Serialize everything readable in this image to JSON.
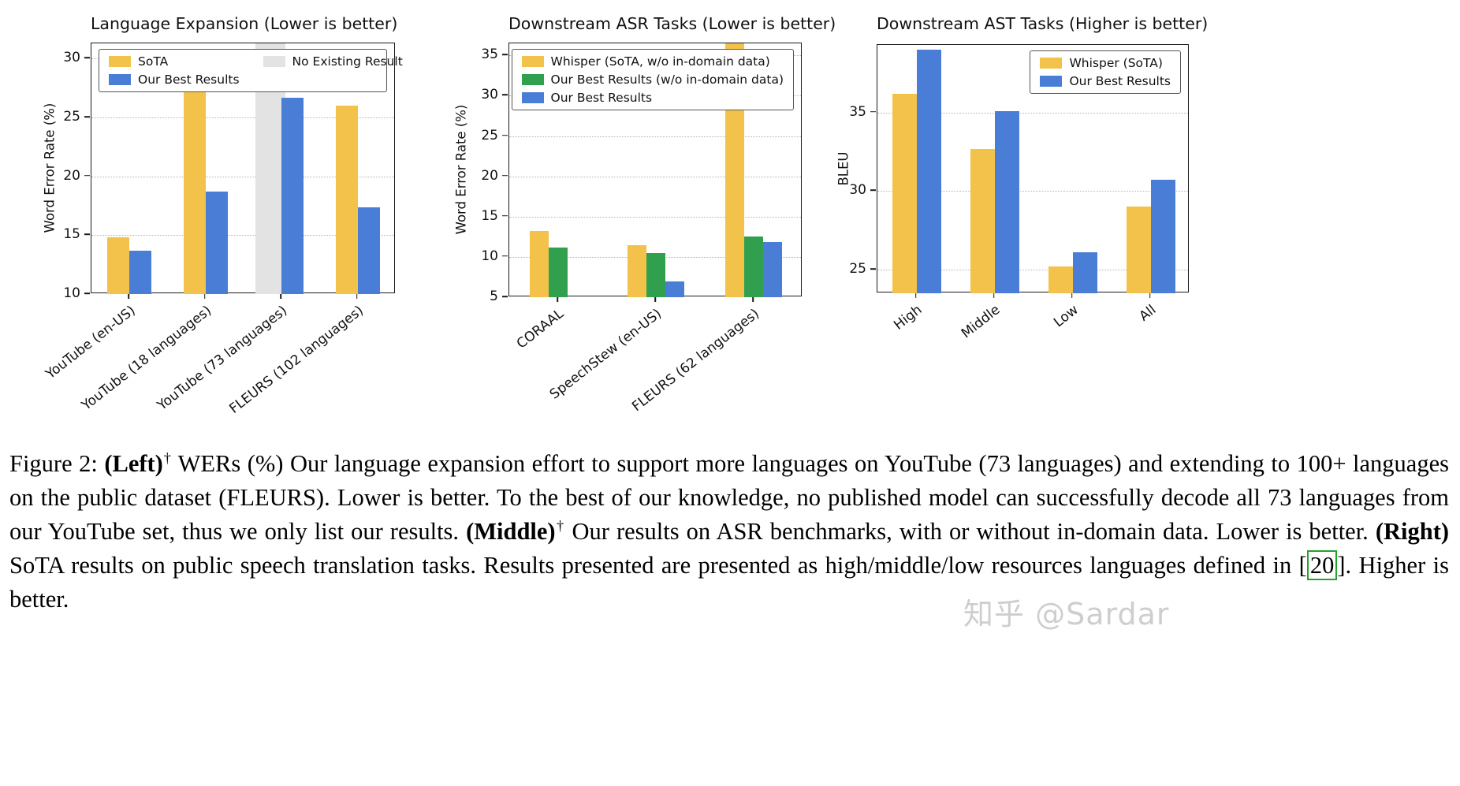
{
  "colors": {
    "gold": "#F2C24B",
    "blue": "#4A7DD6",
    "green": "#30A04E",
    "gray": "#E3E3E3",
    "cite_green": "#23A32A"
  },
  "chart_data": [
    {
      "type": "bar",
      "title": "Language Expansion (Lower is better)",
      "ylabel": "Word Error Rate (%)",
      "categories": [
        "YouTube (en-US)",
        "YouTube (18 languages)",
        "YouTube (73 languages)",
        "FLEURS (102 languages)"
      ],
      "series": [
        {
          "name": "SoTA",
          "color_key": "gold",
          "values": [
            14.8,
            27.8,
            null,
            26.0
          ]
        },
        {
          "name": "Our Best Results",
          "color_key": "blue",
          "values": [
            13.7,
            18.7,
            26.7,
            17.4
          ]
        }
      ],
      "no_result": {
        "label": "No Existing Result",
        "color_key": "gray",
        "category_index": 2
      },
      "ylim": [
        10,
        31.3
      ],
      "yticks": [
        10,
        15,
        20,
        25,
        30
      ],
      "grid": "dotted-horizontal",
      "legend_position": "top-spread"
    },
    {
      "type": "bar",
      "title": "Downstream ASR Tasks (Lower is better)",
      "ylabel": "Word Error Rate (%)",
      "categories": [
        "CORAAL",
        "SpeechStew (en-US)",
        "FLEURS (62 languages)"
      ],
      "series": [
        {
          "name": "Whisper (SoTA, w/o in-domain data)",
          "color_key": "gold",
          "values": [
            13.2,
            11.5,
            36.5
          ]
        },
        {
          "name": "Our Best Results (w/o in-domain data)",
          "color_key": "green",
          "values": [
            11.2,
            10.5,
            12.5
          ]
        },
        {
          "name": "Our Best Results",
          "color_key": "blue",
          "values": [
            null,
            7.0,
            11.8
          ]
        }
      ],
      "ylim": [
        5,
        36.5
      ],
      "yticks": [
        5,
        10,
        15,
        20,
        25,
        30,
        35
      ],
      "grid": "dotted-horizontal",
      "legend_position": "top-right"
    },
    {
      "type": "bar",
      "title": "Downstream AST Tasks (Higher is better)",
      "ylabel": "BLEU",
      "categories": [
        "High",
        "Middle",
        "Low",
        "All"
      ],
      "series": [
        {
          "name": "Whisper (SoTA)",
          "color_key": "gold",
          "values": [
            36.2,
            32.7,
            25.2,
            29.0
          ]
        },
        {
          "name": "Our Best Results",
          "color_key": "blue",
          "values": [
            39.0,
            35.1,
            26.1,
            30.7
          ]
        }
      ],
      "ylim": [
        23.5,
        39.3
      ],
      "yticks": [
        25,
        30,
        35
      ],
      "grid": "dotted-horizontal",
      "legend_position": "top-right"
    }
  ],
  "figure": {
    "caption_segments": [
      {
        "style": "normal",
        "text": "Figure 2: "
      },
      {
        "style": "bold",
        "text": "(Left)"
      },
      {
        "style": "sup",
        "text": "†"
      },
      {
        "style": "normal",
        "text": " WERs (%) Our language expansion effort to support more languages on YouTube (73 languages) and extending to 100+ languages on the public dataset (FLEURS). Lower is better. To the best of our knowledge, no published model can successfully decode all 73 languages from our YouTube set, thus we only list our results. "
      },
      {
        "style": "bold",
        "text": "(Middle)"
      },
      {
        "style": "sup",
        "text": "†"
      },
      {
        "style": "normal",
        "text": " Our results on ASR benchmarks, with or without in-domain data. Lower is better. "
      },
      {
        "style": "bold",
        "text": "(Right)"
      },
      {
        "style": "normal",
        "text": " SoTA results on public speech translation tasks. Results presented are presented as high/middle/low resources languages defined in "
      },
      {
        "style": "cite",
        "text": "[20]"
      },
      {
        "style": "normal",
        "text": ". Higher is better."
      }
    ]
  },
  "watermark": {
    "text": "知乎 @Sardar"
  }
}
